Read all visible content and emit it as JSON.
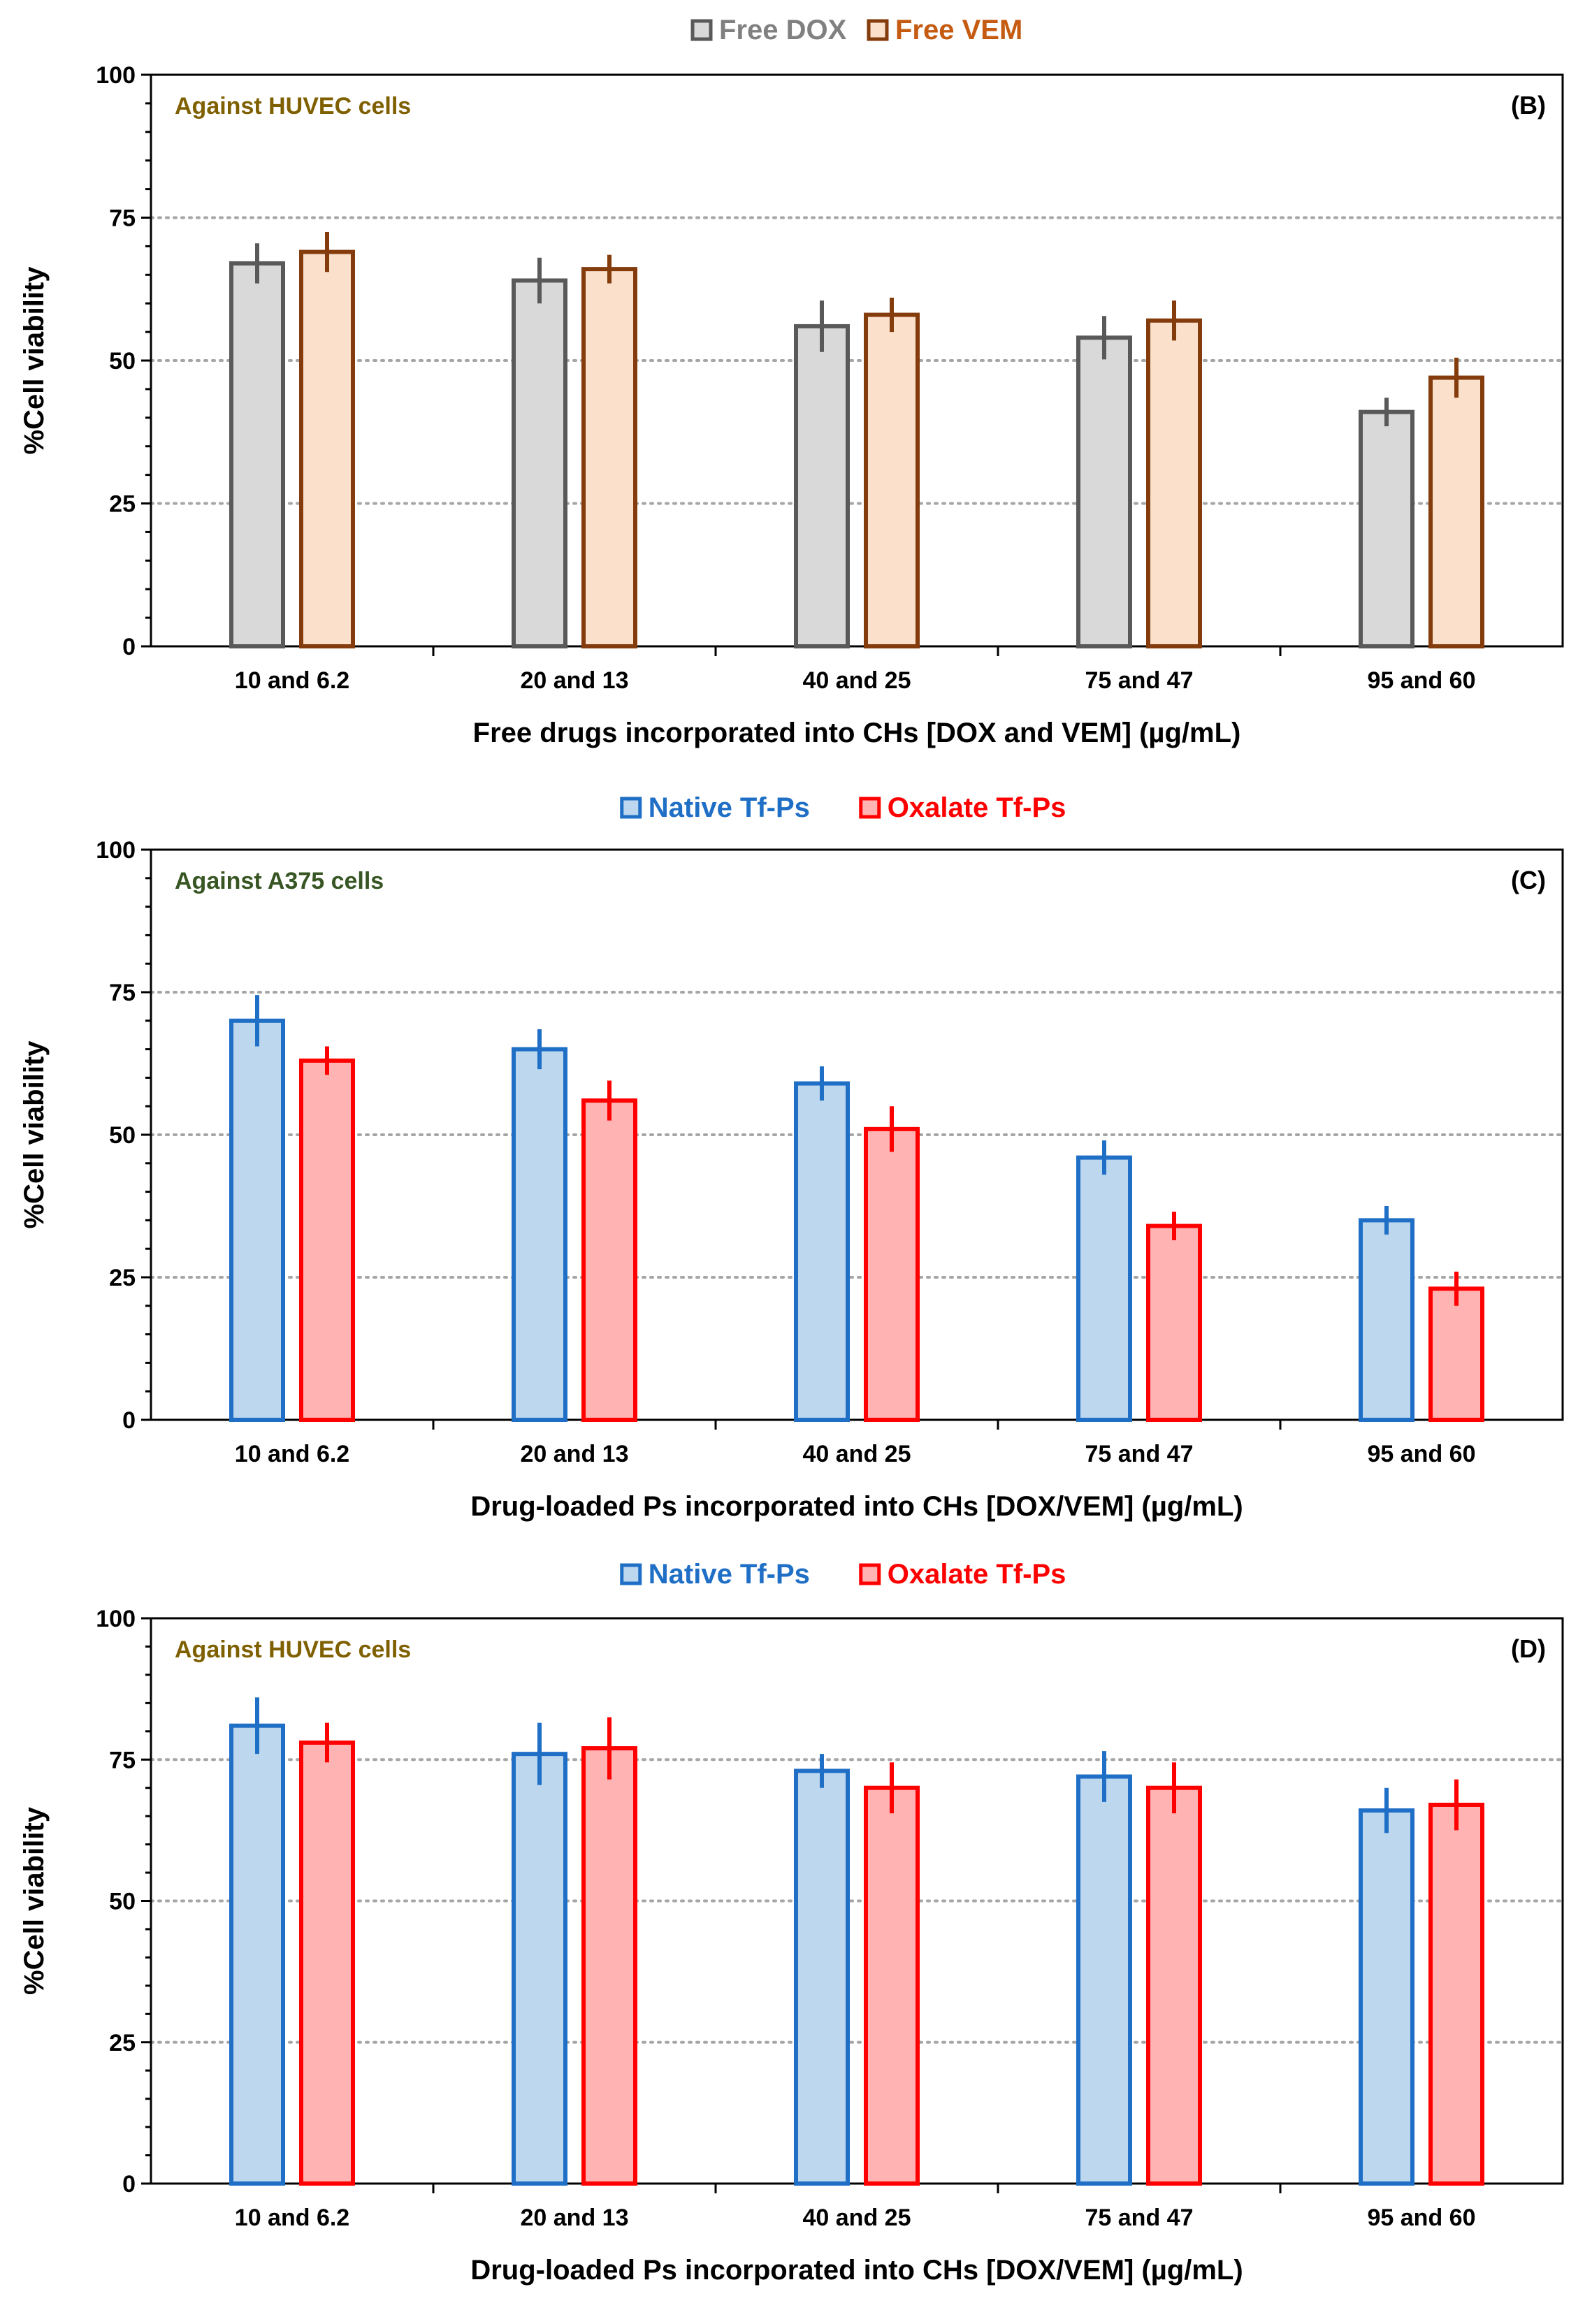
{
  "chart_data": [
    {
      "type": "bar",
      "panel": "(B)",
      "annotation": "Against HUVEC cells",
      "annotation_color": "#7F6000",
      "categories": [
        "10 and 6.2",
        "20 and 13",
        "40 and 25",
        "75 and 47",
        "95 and 60"
      ],
      "series": [
        {
          "name": "Free DOX",
          "values": [
            67,
            64,
            56,
            54,
            41
          ],
          "errors": [
            3.5,
            4,
            4.5,
            3.8,
            2.5
          ],
          "stroke": "#595959",
          "fill": "#D9D9D9",
          "legend_color": "#808080"
        },
        {
          "name": "Free VEM",
          "values": [
            69,
            66,
            58,
            57,
            47
          ],
          "errors": [
            3.5,
            2.5,
            3,
            3.5,
            3.5
          ],
          "stroke": "#843C0C",
          "fill": "#FBE0CC",
          "legend_color": "#C55A11"
        }
      ],
      "xlabel": "Free drugs incorporated into CHs [DOX and VEM] (µg/mL)",
      "ylabel": "%Cell viability",
      "ylim": [
        0,
        100
      ],
      "yticks": [
        "0",
        "25",
        "50",
        "75",
        "100"
      ],
      "grid": true,
      "legend_position": "top-center"
    },
    {
      "type": "bar",
      "panel": "(C)",
      "annotation": "Against A375 cells",
      "annotation_color": "#375623",
      "categories": [
        "10 and 6.2",
        "20 and 13",
        "40 and 25",
        "75 and 47",
        "95 and 60"
      ],
      "series": [
        {
          "name": "Native Tf-Ps",
          "values": [
            70,
            65,
            59,
            46,
            35
          ],
          "errors": [
            4.5,
            3.5,
            3,
            3,
            2.5
          ],
          "stroke": "#1F6FC6",
          "fill": "#BDD7EE",
          "legend_color": "#1F6FC6"
        },
        {
          "name": "Oxalate Tf-Ps",
          "values": [
            63,
            56,
            51,
            34,
            23
          ],
          "errors": [
            2.5,
            3.5,
            4,
            2.5,
            3
          ],
          "stroke": "#FF0000",
          "fill": "#FFB3B3",
          "legend_color": "#FF0000"
        }
      ],
      "xlabel": "Drug-loaded Ps incorporated into CHs [DOX/VEM] (µg/mL)",
      "ylabel": "%Cell viability",
      "ylim": [
        0,
        100
      ],
      "yticks": [
        "0",
        "25",
        "50",
        "75",
        "100"
      ],
      "grid": true,
      "legend_position": "top-center"
    },
    {
      "type": "bar",
      "panel": "(D)",
      "annotation": "Against HUVEC cells",
      "annotation_color": "#7F6000",
      "categories": [
        "10 and 6.2",
        "20 and 13",
        "40 and 25",
        "75 and 47",
        "95 and 60"
      ],
      "series": [
        {
          "name": "Native Tf-Ps",
          "values": [
            81,
            76,
            73,
            72,
            66
          ],
          "errors": [
            5,
            5.5,
            3,
            4.5,
            4
          ],
          "stroke": "#1F6FC6",
          "fill": "#BDD7EE",
          "legend_color": "#1F6FC6"
        },
        {
          "name": "Oxalate Tf-Ps",
          "values": [
            78,
            77,
            70,
            70,
            67
          ],
          "errors": [
            3.5,
            5.5,
            4.5,
            4.5,
            4.5
          ],
          "stroke": "#FF0000",
          "fill": "#FFB3B3",
          "legend_color": "#FF0000"
        }
      ],
      "xlabel": "Drug-loaded Ps incorporated into CHs [DOX/VEM] (µg/mL)",
      "ylabel": "%Cell viability",
      "ylim": [
        0,
        100
      ],
      "yticks": [
        "0",
        "25",
        "50",
        "75",
        "100"
      ],
      "grid": true,
      "legend_position": "top-center"
    }
  ]
}
